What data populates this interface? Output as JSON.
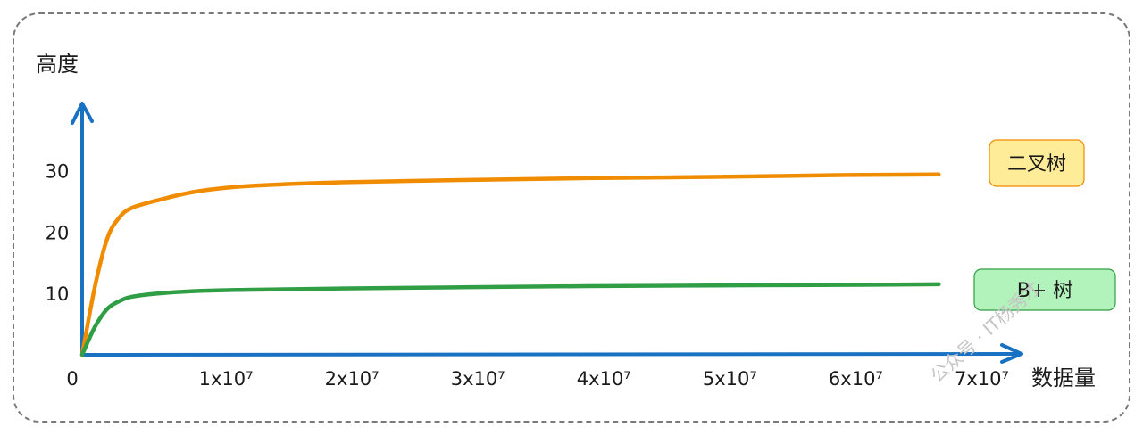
{
  "chart_data": {
    "type": "line",
    "title": "",
    "ylabel": "高度",
    "xlabel": "数据量",
    "x_ticks": [
      {
        "value": 0,
        "label": "0"
      },
      {
        "value": 10000000,
        "label": "1x10⁷"
      },
      {
        "value": 20000000,
        "label": "2x10⁷"
      },
      {
        "value": 30000000,
        "label": "3x10⁷"
      },
      {
        "value": 40000000,
        "label": "4x10⁷"
      },
      {
        "value": 50000000,
        "label": "5x10⁷"
      },
      {
        "value": 60000000,
        "label": "6x10⁷"
      },
      {
        "value": 70000000,
        "label": "7x10⁷"
      }
    ],
    "y_ticks": [
      {
        "value": 10,
        "label": "10"
      },
      {
        "value": 20,
        "label": "20"
      },
      {
        "value": 30,
        "label": "30"
      }
    ],
    "xlim": [
      0,
      75000000
    ],
    "ylim": [
      0,
      41
    ],
    "grid": false,
    "legend": "right",
    "series": [
      {
        "name": "二叉树",
        "color": "#f08c00",
        "legend_bg": "#ffec99",
        "legend_border": "#f08c00",
        "x": [
          0,
          1000000,
          2000000,
          3000000,
          4000000,
          6000000,
          9000000,
          13000000,
          20000000,
          30000000,
          40000000,
          50000000,
          60000000,
          68000000
        ],
        "y": [
          0,
          11,
          19,
          22.5,
          24,
          25.2,
          26.6,
          27.5,
          28.1,
          28.5,
          28.8,
          29.0,
          29.3,
          29.4
        ]
      },
      {
        "name": "B+ 树",
        "color": "#2f9e44",
        "legend_bg": "#b2f2bb",
        "legend_border": "#2f9e44",
        "x": [
          0,
          1000000,
          2000000,
          3000000,
          4000000,
          6000000,
          9000000,
          13000000,
          20000000,
          30000000,
          40000000,
          50000000,
          60000000,
          68000000
        ],
        "y": [
          0,
          4.5,
          7.5,
          8.8,
          9.5,
          10.0,
          10.4,
          10.6,
          10.8,
          11.0,
          11.2,
          11.3,
          11.4,
          11.5
        ]
      }
    ]
  },
  "watermark": "公众号 · IT杨秀才"
}
